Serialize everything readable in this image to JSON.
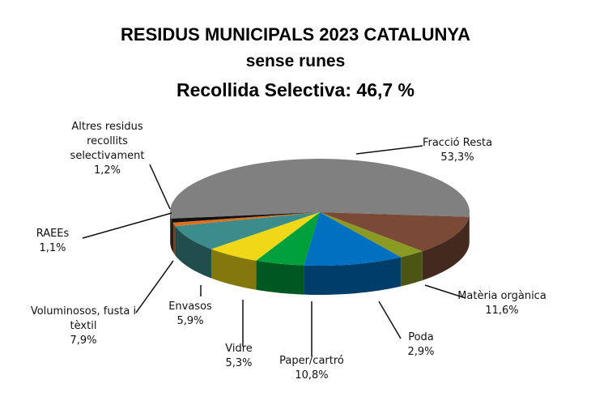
{
  "chart_data": {
    "type": "pie3d",
    "title": "RESIDUS MUNICIPALS 2023 CATALUNYA",
    "subtitle": "sense runes",
    "annotation": "Recollida Selectiva:  46,7 %",
    "categories": [
      "Fracció Resta",
      "Matèria orgànica",
      "Poda",
      "Paper/cartró",
      "Vidre",
      "Envasos",
      "Voluminosos, fusta i tèxtil",
      "RAEEs",
      "Altres residus recollits selectivament"
    ],
    "values": [
      53.3,
      11.6,
      2.9,
      10.8,
      5.3,
      5.9,
      7.9,
      1.1,
      1.2
    ],
    "value_labels": [
      "53,3%",
      "11,6%",
      "2,9%",
      "10,8%",
      "5,3%",
      "5,9%",
      "7,9%",
      "1,1%",
      "1,2%"
    ],
    "colors": [
      "#808080",
      "#7b4a36",
      "#8a9a22",
      "#0070c0",
      "#00a03c",
      "#f0d818",
      "#3d8c8c",
      "#e07020",
      "#111111"
    ]
  }
}
